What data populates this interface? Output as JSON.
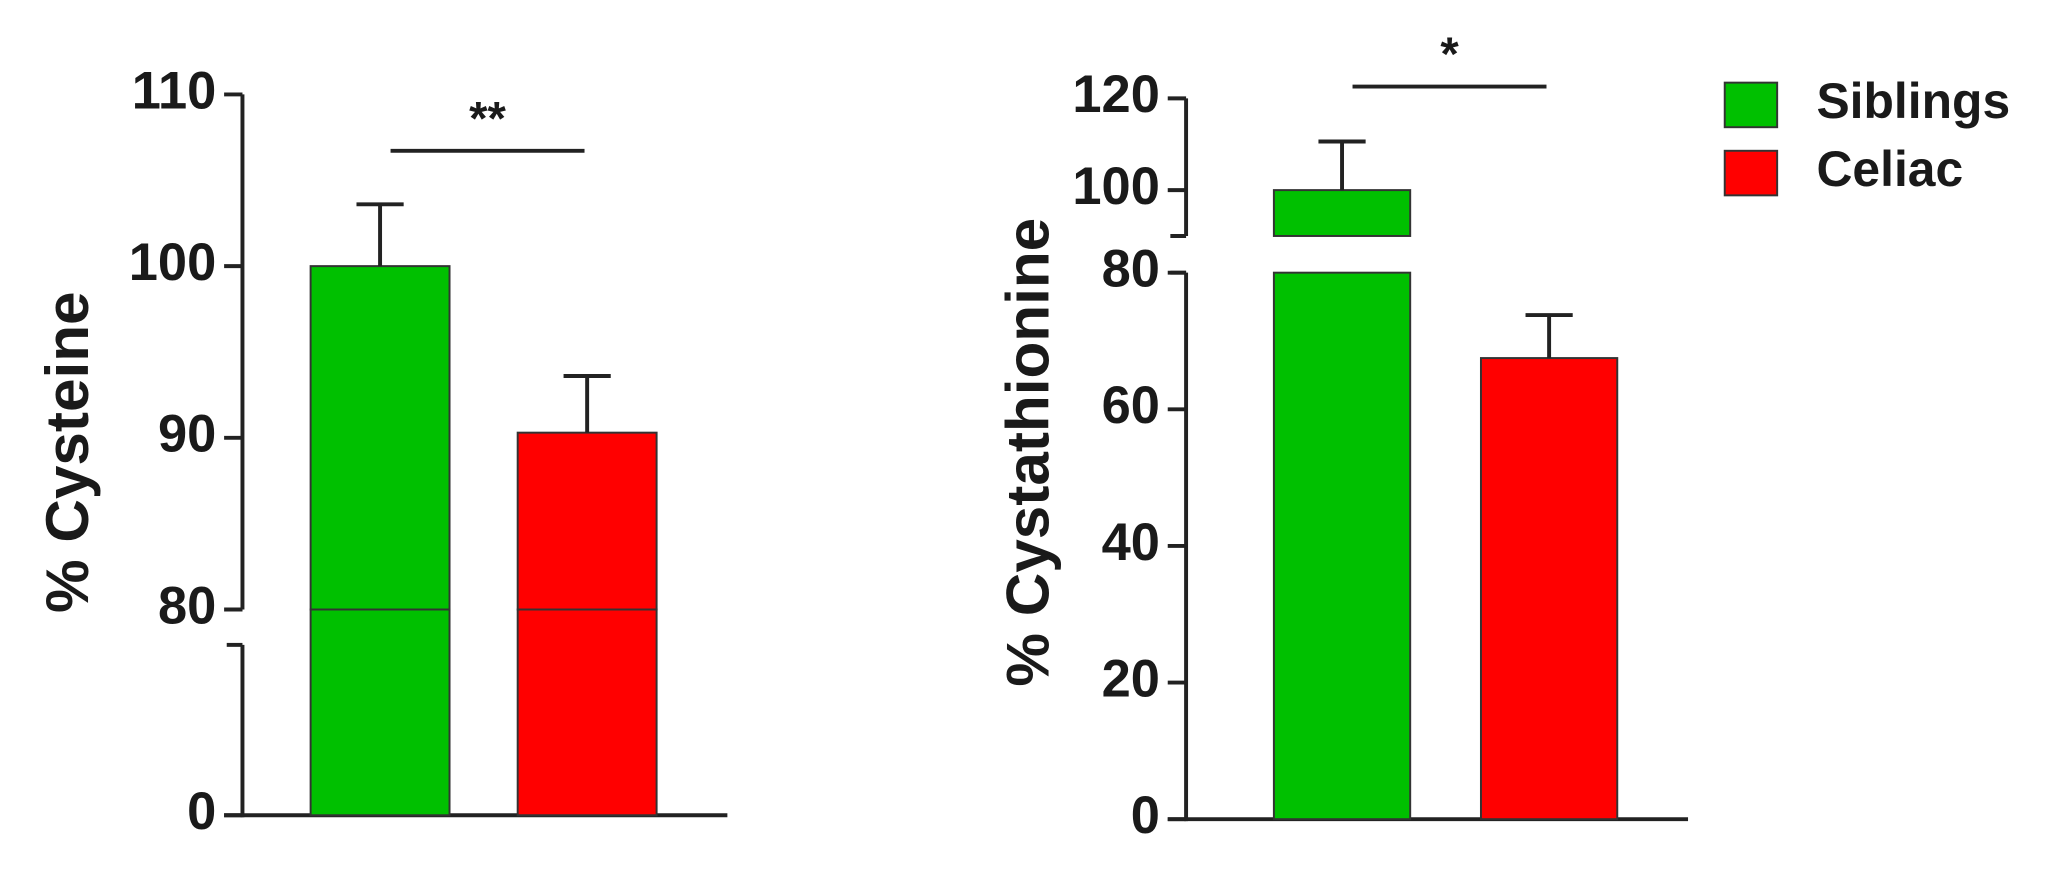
{
  "chart_data": [
    {
      "type": "bar",
      "y_label": "% Cysteine",
      "categories": [
        null
      ],
      "series": [
        {
          "color": "#00c000",
          "values": [
            100
          ],
          "errors": [
            3.6
          ]
        },
        {
          "color": "#ff0000",
          "values": [
            90.3
          ],
          "errors": [
            3.3
          ]
        }
      ],
      "ylim": [
        0,
        110
      ],
      "ybreak": [
        80,
        80
      ],
      "yticks": [
        0,
        80,
        90,
        100,
        110
      ],
      "annotations": [
        {
          "text": "**"
        }
      ]
    },
    {
      "type": "bar",
      "y_label": "% Cystathionine",
      "categories": [
        null
      ],
      "series": [
        {
          "name": "Siblings",
          "color": "#00c000",
          "values": [
            100
          ],
          "errors": [
            10.6
          ]
        },
        {
          "name": "Celiac",
          "color": "#ff0000",
          "values": [
            67.5
          ],
          "errors": [
            6.3
          ]
        }
      ],
      "ylim": [
        0,
        120
      ],
      "ybreak": [
        80,
        90
      ],
      "yticks": [
        0,
        20,
        40,
        60,
        80,
        100,
        120
      ],
      "annotations": [
        {
          "text": "*"
        }
      ],
      "legend": "top-right"
    }
  ]
}
